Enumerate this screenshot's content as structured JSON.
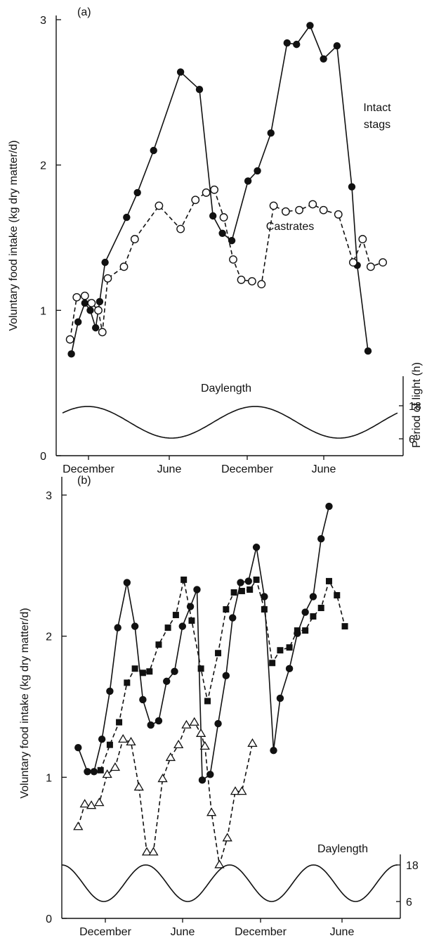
{
  "chart_data": [
    {
      "type": "line",
      "panel_label": "(a)",
      "ylabel": "Voluntary food intake (kg dry matter/d)",
      "ylim": [
        0,
        3
      ],
      "yticks": [
        0,
        1,
        2,
        3
      ],
      "x_month_labels": [
        "December",
        "June",
        "December",
        "June"
      ],
      "series": [
        {
          "name": "Intact stags",
          "marker": "filled-circle",
          "line": "solid",
          "points": [
            [
              0.5,
              0.7
            ],
            [
              1.0,
              0.92
            ],
            [
              1.5,
              1.05
            ],
            [
              1.9,
              1.0
            ],
            [
              2.3,
              0.88
            ],
            [
              2.6,
              1.06
            ],
            [
              3.0,
              1.33
            ],
            [
              4.6,
              1.64
            ],
            [
              5.4,
              1.81
            ],
            [
              6.6,
              2.1
            ],
            [
              8.6,
              2.64
            ],
            [
              10.0,
              2.52
            ],
            [
              11.0,
              1.65
            ],
            [
              11.7,
              1.53
            ],
            [
              12.4,
              1.48
            ],
            [
              13.6,
              1.89
            ],
            [
              14.3,
              1.96
            ],
            [
              15.3,
              2.22
            ],
            [
              16.5,
              2.84
            ],
            [
              17.2,
              2.83
            ],
            [
              18.2,
              2.96
            ],
            [
              19.2,
              2.73
            ],
            [
              20.2,
              2.82
            ],
            [
              21.3,
              1.85
            ],
            [
              21.7,
              1.31
            ],
            [
              22.5,
              0.72
            ]
          ]
        },
        {
          "name": "Castrates",
          "marker": "open-circle",
          "line": "dashed",
          "points": [
            [
              0.4,
              0.8
            ],
            [
              0.9,
              1.09
            ],
            [
              1.5,
              1.1
            ],
            [
              2.0,
              1.05
            ],
            [
              2.5,
              1.0
            ],
            [
              2.8,
              0.85
            ],
            [
              3.2,
              1.22
            ],
            [
              4.4,
              1.3
            ],
            [
              5.2,
              1.49
            ],
            [
              7.0,
              1.72
            ],
            [
              8.6,
              1.56
            ],
            [
              9.7,
              1.76
            ],
            [
              10.5,
              1.81
            ],
            [
              11.1,
              1.83
            ],
            [
              11.8,
              1.64
            ],
            [
              12.5,
              1.35
            ],
            [
              13.1,
              1.21
            ],
            [
              13.9,
              1.2
            ],
            [
              14.6,
              1.18
            ],
            [
              15.5,
              1.72
            ],
            [
              16.4,
              1.68
            ],
            [
              17.4,
              1.69
            ],
            [
              18.4,
              1.73
            ],
            [
              19.2,
              1.69
            ],
            [
              20.3,
              1.66
            ],
            [
              21.4,
              1.33
            ],
            [
              22.1,
              1.49
            ],
            [
              22.7,
              1.3
            ],
            [
              23.6,
              1.33
            ]
          ]
        }
      ],
      "daylength": {
        "label": "Daylength",
        "right_axis_label": "Period of light (h)",
        "right_ticks": [
          6,
          18
        ],
        "cycles": 2
      }
    },
    {
      "type": "line",
      "panel_label": "(b)",
      "ylabel": "Voluntary food intake (kg dry matter/d)",
      "ylim": [
        0,
        3
      ],
      "yticks": [
        0,
        1,
        2,
        3
      ],
      "x_month_labels": [
        "December",
        "June",
        "December",
        "June"
      ],
      "series": [
        {
          "marker": "filled-circle",
          "line": "solid",
          "points": [
            [
              0.6,
              1.21
            ],
            [
              1.3,
              1.04
            ],
            [
              1.8,
              1.04
            ],
            [
              2.4,
              1.27
            ],
            [
              3.0,
              1.61
            ],
            [
              3.6,
              2.06
            ],
            [
              4.3,
              2.38
            ],
            [
              4.9,
              2.07
            ],
            [
              5.5,
              1.55
            ],
            [
              6.1,
              1.37
            ],
            [
              6.7,
              1.4
            ],
            [
              7.3,
              1.68
            ],
            [
              7.9,
              1.75
            ],
            [
              8.5,
              2.07
            ],
            [
              9.1,
              2.21
            ],
            [
              9.6,
              2.33
            ],
            [
              10.0,
              0.98
            ],
            [
              10.6,
              1.02
            ],
            [
              11.2,
              1.38
            ],
            [
              11.8,
              1.72
            ],
            [
              12.3,
              2.13
            ],
            [
              12.9,
              2.38
            ],
            [
              13.5,
              2.39
            ],
            [
              14.1,
              2.63
            ],
            [
              14.7,
              2.28
            ],
            [
              15.4,
              1.19
            ],
            [
              15.9,
              1.56
            ],
            [
              16.6,
              1.77
            ],
            [
              17.2,
              2.02
            ],
            [
              17.8,
              2.17
            ],
            [
              18.4,
              2.28
            ],
            [
              19.0,
              2.69
            ],
            [
              19.6,
              2.92
            ]
          ]
        },
        {
          "marker": "filled-square",
          "line": "dashed",
          "points": [
            [
              2.3,
              1.05
            ],
            [
              3.0,
              1.23
            ],
            [
              3.7,
              1.39
            ],
            [
              4.3,
              1.67
            ],
            [
              4.9,
              1.77
            ],
            [
              5.5,
              1.74
            ],
            [
              6.0,
              1.75
            ],
            [
              6.7,
              1.94
            ],
            [
              7.4,
              2.06
            ],
            [
              8.0,
              2.15
            ],
            [
              8.6,
              2.4
            ],
            [
              9.2,
              2.11
            ],
            [
              9.9,
              1.77
            ],
            [
              10.4,
              1.54
            ],
            [
              11.2,
              1.88
            ],
            [
              11.8,
              2.19
            ],
            [
              12.4,
              2.31
            ],
            [
              13.0,
              2.32
            ],
            [
              13.6,
              2.33
            ],
            [
              14.1,
              2.4
            ],
            [
              14.7,
              2.19
            ],
            [
              15.3,
              1.81
            ],
            [
              15.9,
              1.9
            ],
            [
              16.6,
              1.92
            ],
            [
              17.2,
              2.04
            ],
            [
              17.8,
              2.04
            ],
            [
              18.4,
              2.14
            ],
            [
              19.0,
              2.2
            ],
            [
              19.6,
              2.39
            ],
            [
              20.2,
              2.29
            ],
            [
              20.8,
              2.07
            ]
          ]
        },
        {
          "marker": "open-triangle",
          "line": "dashed",
          "points": [
            [
              0.6,
              0.65
            ],
            [
              1.1,
              0.81
            ],
            [
              1.6,
              0.8
            ],
            [
              2.2,
              0.82
            ],
            [
              2.8,
              1.02
            ],
            [
              3.4,
              1.07
            ],
            [
              4.0,
              1.27
            ],
            [
              4.6,
              1.25
            ],
            [
              5.2,
              0.93
            ],
            [
              5.8,
              0.47
            ],
            [
              6.3,
              0.47
            ],
            [
              7.0,
              0.99
            ],
            [
              7.6,
              1.14
            ],
            [
              8.2,
              1.23
            ],
            [
              8.8,
              1.37
            ],
            [
              9.4,
              1.39
            ],
            [
              9.9,
              1.31
            ],
            [
              10.2,
              1.22
            ],
            [
              10.7,
              0.75
            ],
            [
              11.3,
              0.38
            ],
            [
              11.9,
              0.57
            ],
            [
              12.5,
              0.9
            ],
            [
              13.0,
              0.9
            ],
            [
              13.8,
              1.24
            ]
          ]
        }
      ],
      "daylength": {
        "label": "Daylength",
        "right_ticks": [
          18,
          6
        ],
        "cycles": 4
      }
    }
  ]
}
